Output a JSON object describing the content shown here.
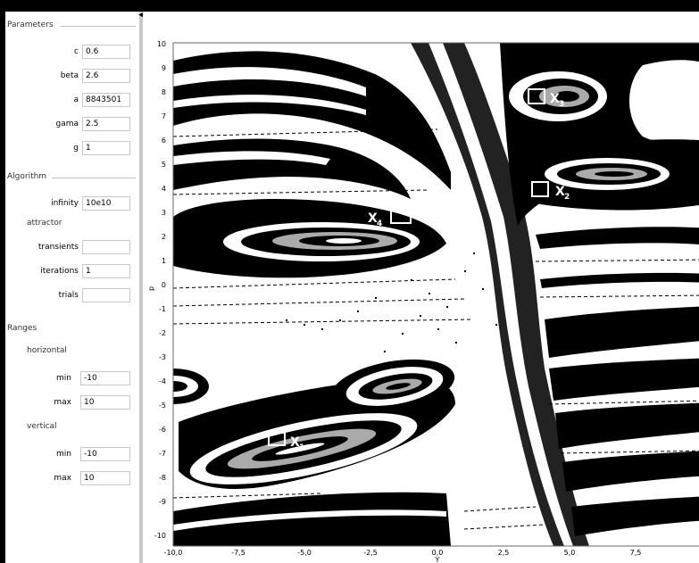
{
  "panel": {
    "parameters_title": "Parameters",
    "params": [
      {
        "label": "c",
        "value": "0.6"
      },
      {
        "label": "beta",
        "value": "2.6"
      },
      {
        "label": "a",
        "value": "8843501"
      },
      {
        "label": "gama",
        "value": "2.5"
      },
      {
        "label": "g",
        "value": "1"
      }
    ],
    "algorithm_title": "Algorithm",
    "infinity_label": "infinity",
    "infinity_value": "10e10",
    "attractor_label": "attractor",
    "transients_label": "transients",
    "transients_value": "",
    "iterations_label": "iterations",
    "iterations_value": "1",
    "trials_label": "trials",
    "trials_value": "",
    "ranges_title": "Ranges",
    "horizontal_label": "horizontal",
    "h_min_label": "min",
    "h_min_value": "-10",
    "h_max_label": "max",
    "h_max_value": "10",
    "vertical_label": "vertical",
    "v_min_label": "min",
    "v_min_value": "-10",
    "v_max_label": "max",
    "v_max_value": "10"
  },
  "plot": {
    "xlabel": "Y",
    "ylabel": "p",
    "x_ticks": [
      "-10,0",
      "-7,5",
      "-5,0",
      "-2,5",
      "0,0",
      "2,5",
      "5,0",
      "7,5"
    ],
    "y_ticks": [
      "10",
      "9",
      "8",
      "7",
      "6",
      "5",
      "4",
      "3",
      "2",
      "1",
      "0",
      "-1",
      "-2",
      "-3",
      "-4",
      "-5",
      "-6",
      "-7",
      "-8",
      "-9",
      "-10"
    ],
    "markers": [
      {
        "label": "X",
        "sub": "1"
      },
      {
        "label": "X",
        "sub": "2"
      },
      {
        "label": "X",
        "sub": "3"
      },
      {
        "label": "X",
        "sub": "4"
      }
    ]
  }
}
